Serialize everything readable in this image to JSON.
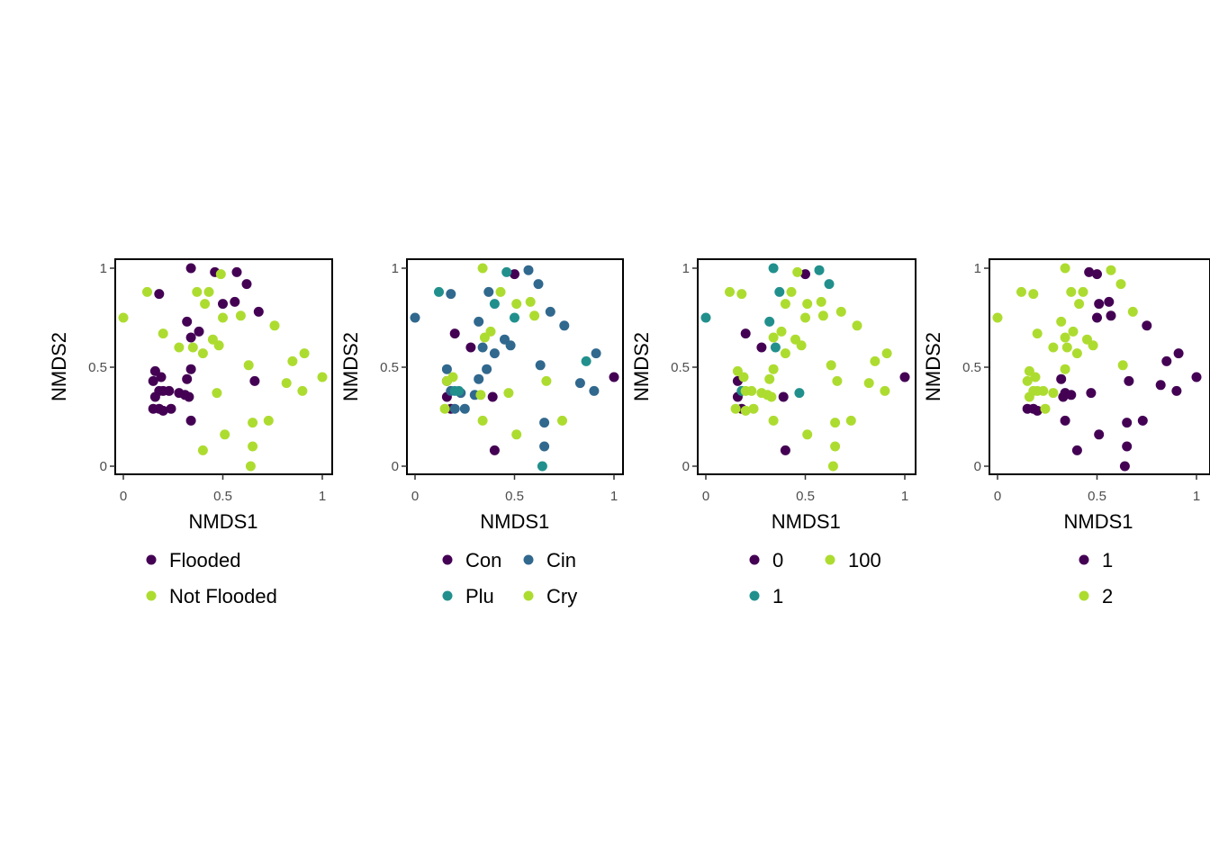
{
  "chart_data": [
    {
      "type": "scatter",
      "xlabel": "NMDS1",
      "ylabel": "NMDS2",
      "xlim": [
        0,
        1
      ],
      "ylim": [
        0,
        1
      ],
      "x_ticks": [
        "0",
        "0.5",
        "1"
      ],
      "y_ticks": [
        "0",
        "0.5",
        "1"
      ],
      "legend_position": "bottom",
      "series": [
        {
          "name": "Flooded",
          "color": "#440154",
          "points": [
            [
              0.34,
              1.0
            ],
            [
              0.46,
              0.98
            ],
            [
              0.57,
              0.98
            ],
            [
              0.62,
              0.92
            ],
            [
              0.18,
              0.87
            ],
            [
              0.56,
              0.83
            ],
            [
              0.5,
              0.82
            ],
            [
              0.68,
              0.78
            ],
            [
              0.32,
              0.73
            ],
            [
              0.38,
              0.68
            ],
            [
              0.34,
              0.65
            ],
            [
              0.34,
              0.49
            ],
            [
              0.16,
              0.48
            ],
            [
              0.19,
              0.45
            ],
            [
              0.15,
              0.43
            ],
            [
              0.32,
              0.44
            ],
            [
              0.2,
              0.38
            ],
            [
              0.18,
              0.38
            ],
            [
              0.23,
              0.38
            ],
            [
              0.28,
              0.37
            ],
            [
              0.16,
              0.35
            ],
            [
              0.33,
              0.35
            ],
            [
              0.31,
              0.36
            ],
            [
              0.15,
              0.29
            ],
            [
              0.18,
              0.29
            ],
            [
              0.2,
              0.28
            ],
            [
              0.24,
              0.29
            ],
            [
              0.34,
              0.23
            ],
            [
              0.66,
              0.43
            ]
          ]
        },
        {
          "name": "Not Flooded",
          "color": "#addc30",
          "points": [
            [
              0.49,
              0.97
            ],
            [
              0.12,
              0.88
            ],
            [
              0.37,
              0.88
            ],
            [
              0.43,
              0.88
            ],
            [
              0.41,
              0.82
            ],
            [
              0.0,
              0.75
            ],
            [
              0.5,
              0.75
            ],
            [
              0.59,
              0.76
            ],
            [
              0.76,
              0.71
            ],
            [
              0.2,
              0.67
            ],
            [
              0.45,
              0.64
            ],
            [
              0.48,
              0.61
            ],
            [
              0.28,
              0.6
            ],
            [
              0.35,
              0.6
            ],
            [
              0.4,
              0.57
            ],
            [
              0.91,
              0.57
            ],
            [
              0.85,
              0.53
            ],
            [
              0.63,
              0.51
            ],
            [
              1.0,
              0.45
            ],
            [
              0.82,
              0.42
            ],
            [
              0.9,
              0.38
            ],
            [
              0.47,
              0.37
            ],
            [
              0.65,
              0.22
            ],
            [
              0.73,
              0.23
            ],
            [
              0.51,
              0.16
            ],
            [
              0.4,
              0.08
            ],
            [
              0.65,
              0.1
            ],
            [
              0.64,
              0.0
            ]
          ]
        }
      ]
    },
    {
      "type": "scatter",
      "xlabel": "NMDS1",
      "ylabel": "NMDS2",
      "xlim": [
        0,
        1
      ],
      "ylim": [
        0,
        1
      ],
      "x_ticks": [
        "0",
        "0.5",
        "1"
      ],
      "y_ticks": [
        "0",
        "0.5",
        "1"
      ],
      "legend_position": "bottom",
      "series": [
        {
          "name": "Con",
          "color": "#440154",
          "points": [
            [
              0.5,
              0.97
            ],
            [
              0.2,
              0.67
            ],
            [
              0.28,
              0.6
            ],
            [
              0.16,
              0.43
            ],
            [
              0.16,
              0.35
            ],
            [
              0.39,
              0.35
            ],
            [
              0.4,
              0.08
            ],
            [
              1.0,
              0.45
            ],
            [
              0.18,
              0.29
            ]
          ]
        },
        {
          "name": "Cin",
          "color": "#31688e",
          "points": [
            [
              0.57,
              0.99
            ],
            [
              0.18,
              0.87
            ],
            [
              0.37,
              0.88
            ],
            [
              0.62,
              0.92
            ],
            [
              0.68,
              0.78
            ],
            [
              0.0,
              0.75
            ],
            [
              0.32,
              0.73
            ],
            [
              0.75,
              0.71
            ],
            [
              0.45,
              0.64
            ],
            [
              0.48,
              0.61
            ],
            [
              0.34,
              0.6
            ],
            [
              0.4,
              0.57
            ],
            [
              0.91,
              0.57
            ],
            [
              0.63,
              0.51
            ],
            [
              0.36,
              0.49
            ],
            [
              0.16,
              0.49
            ],
            [
              0.32,
              0.44
            ],
            [
              0.18,
              0.38
            ],
            [
              0.23,
              0.37
            ],
            [
              0.3,
              0.36
            ],
            [
              0.83,
              0.42
            ],
            [
              0.9,
              0.38
            ],
            [
              0.2,
              0.29
            ],
            [
              0.25,
              0.29
            ],
            [
              0.65,
              0.22
            ],
            [
              0.65,
              0.1
            ]
          ]
        },
        {
          "name": "Plu",
          "color": "#21908d",
          "points": [
            [
              0.46,
              0.98
            ],
            [
              0.12,
              0.88
            ],
            [
              0.4,
              0.82
            ],
            [
              0.5,
              0.75
            ],
            [
              0.86,
              0.53
            ],
            [
              0.2,
              0.38
            ],
            [
              0.22,
              0.38
            ],
            [
              0.64,
              0.0
            ]
          ]
        },
        {
          "name": "Cry",
          "color": "#addc30",
          "points": [
            [
              0.34,
              1.0
            ],
            [
              0.43,
              0.88
            ],
            [
              0.51,
              0.82
            ],
            [
              0.58,
              0.83
            ],
            [
              0.6,
              0.76
            ],
            [
              0.38,
              0.68
            ],
            [
              0.35,
              0.65
            ],
            [
              0.19,
              0.45
            ],
            [
              0.16,
              0.43
            ],
            [
              0.66,
              0.43
            ],
            [
              0.47,
              0.37
            ],
            [
              0.33,
              0.36
            ],
            [
              0.15,
              0.29
            ],
            [
              0.34,
              0.23
            ],
            [
              0.74,
              0.23
            ],
            [
              0.51,
              0.16
            ]
          ]
        }
      ]
    },
    {
      "type": "scatter",
      "xlabel": "NMDS1",
      "ylabel": "NMDS2",
      "xlim": [
        0,
        1
      ],
      "ylim": [
        0,
        1
      ],
      "x_ticks": [
        "0",
        "0.5",
        "1"
      ],
      "y_ticks": [
        "0",
        "0.5",
        "1"
      ],
      "legend_position": "bottom",
      "series": [
        {
          "name": "0",
          "color": "#440154",
          "points": [
            [
              0.5,
              0.97
            ],
            [
              0.2,
              0.67
            ],
            [
              0.28,
              0.6
            ],
            [
              0.16,
              0.43
            ],
            [
              0.16,
              0.35
            ],
            [
              0.39,
              0.35
            ],
            [
              0.4,
              0.08
            ],
            [
              1.0,
              0.45
            ],
            [
              0.18,
              0.29
            ]
          ]
        },
        {
          "name": "1",
          "color": "#21908d",
          "points": [
            [
              0.34,
              1.0
            ],
            [
              0.57,
              0.99
            ],
            [
              0.62,
              0.92
            ],
            [
              0.37,
              0.88
            ],
            [
              0.0,
              0.75
            ],
            [
              0.32,
              0.73
            ],
            [
              0.35,
              0.6
            ],
            [
              0.47,
              0.37
            ],
            [
              0.18,
              0.38
            ]
          ]
        },
        {
          "name": "100",
          "color": "#addc30",
          "points": [
            [
              0.46,
              0.98
            ],
            [
              0.12,
              0.88
            ],
            [
              0.18,
              0.87
            ],
            [
              0.43,
              0.88
            ],
            [
              0.51,
              0.82
            ],
            [
              0.58,
              0.83
            ],
            [
              0.4,
              0.82
            ],
            [
              0.68,
              0.78
            ],
            [
              0.5,
              0.75
            ],
            [
              0.59,
              0.76
            ],
            [
              0.76,
              0.71
            ],
            [
              0.38,
              0.68
            ],
            [
              0.34,
              0.65
            ],
            [
              0.45,
              0.64
            ],
            [
              0.48,
              0.61
            ],
            [
              0.4,
              0.57
            ],
            [
              0.91,
              0.57
            ],
            [
              0.85,
              0.53
            ],
            [
              0.63,
              0.51
            ],
            [
              0.34,
              0.49
            ],
            [
              0.16,
              0.48
            ],
            [
              0.19,
              0.45
            ],
            [
              0.32,
              0.44
            ],
            [
              0.66,
              0.43
            ],
            [
              0.82,
              0.42
            ],
            [
              0.9,
              0.38
            ],
            [
              0.2,
              0.38
            ],
            [
              0.23,
              0.38
            ],
            [
              0.28,
              0.37
            ],
            [
              0.31,
              0.36
            ],
            [
              0.33,
              0.35
            ],
            [
              0.15,
              0.29
            ],
            [
              0.2,
              0.28
            ],
            [
              0.24,
              0.29
            ],
            [
              0.34,
              0.23
            ],
            [
              0.65,
              0.22
            ],
            [
              0.73,
              0.23
            ],
            [
              0.51,
              0.16
            ],
            [
              0.65,
              0.1
            ],
            [
              0.64,
              0.0
            ]
          ]
        }
      ]
    },
    {
      "type": "scatter",
      "xlabel": "NMDS1",
      "ylabel": "NMDS2",
      "xlim": [
        0,
        1
      ],
      "ylim": [
        0,
        1
      ],
      "x_ticks": [
        "0",
        "0.5",
        "1"
      ],
      "y_ticks": [
        "0",
        "0.5",
        "1"
      ],
      "legend_position": "bottom",
      "series": [
        {
          "name": "1",
          "color": "#440154",
          "points": [
            [
              0.46,
              0.98
            ],
            [
              0.5,
              0.97
            ],
            [
              0.56,
              0.83
            ],
            [
              0.51,
              0.82
            ],
            [
              0.5,
              0.75
            ],
            [
              0.57,
              0.76
            ],
            [
              0.75,
              0.71
            ],
            [
              0.91,
              0.57
            ],
            [
              0.85,
              0.53
            ],
            [
              1.0,
              0.45
            ],
            [
              0.32,
              0.44
            ],
            [
              0.66,
              0.43
            ],
            [
              0.82,
              0.41
            ],
            [
              0.9,
              0.38
            ],
            [
              0.47,
              0.37
            ],
            [
              0.34,
              0.37
            ],
            [
              0.37,
              0.36
            ],
            [
              0.33,
              0.35
            ],
            [
              0.15,
              0.29
            ],
            [
              0.18,
              0.29
            ],
            [
              0.2,
              0.28
            ],
            [
              0.34,
              0.23
            ],
            [
              0.65,
              0.22
            ],
            [
              0.73,
              0.23
            ],
            [
              0.51,
              0.16
            ],
            [
              0.4,
              0.08
            ],
            [
              0.65,
              0.1
            ],
            [
              0.64,
              0.0
            ]
          ]
        },
        {
          "name": "2",
          "color": "#addc30",
          "points": [
            [
              0.34,
              1.0
            ],
            [
              0.57,
              0.99
            ],
            [
              0.62,
              0.92
            ],
            [
              0.12,
              0.88
            ],
            [
              0.18,
              0.87
            ],
            [
              0.37,
              0.88
            ],
            [
              0.43,
              0.88
            ],
            [
              0.41,
              0.82
            ],
            [
              0.68,
              0.78
            ],
            [
              0.0,
              0.75
            ],
            [
              0.2,
              0.67
            ],
            [
              0.32,
              0.73
            ],
            [
              0.38,
              0.68
            ],
            [
              0.34,
              0.65
            ],
            [
              0.45,
              0.64
            ],
            [
              0.48,
              0.61
            ],
            [
              0.28,
              0.6
            ],
            [
              0.35,
              0.6
            ],
            [
              0.4,
              0.57
            ],
            [
              0.63,
              0.51
            ],
            [
              0.34,
              0.49
            ],
            [
              0.16,
              0.48
            ],
            [
              0.19,
              0.45
            ],
            [
              0.15,
              0.43
            ],
            [
              0.2,
              0.38
            ],
            [
              0.18,
              0.38
            ],
            [
              0.23,
              0.38
            ],
            [
              0.28,
              0.37
            ],
            [
              0.16,
              0.35
            ],
            [
              0.24,
              0.29
            ]
          ]
        }
      ]
    }
  ]
}
